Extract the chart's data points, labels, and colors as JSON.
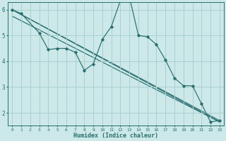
{
  "xlabel": "Humidex (Indice chaleur)",
  "ylabel": "",
  "bg_color": "#cce8e8",
  "grid_color": "#aad0d0",
  "line_color": "#2a6e6e",
  "xlim": [
    -0.5,
    23.5
  ],
  "ylim": [
    1.5,
    6.3
  ],
  "xticks": [
    0,
    1,
    2,
    3,
    4,
    5,
    6,
    7,
    8,
    9,
    10,
    11,
    12,
    13,
    14,
    15,
    16,
    17,
    18,
    19,
    20,
    21,
    22,
    23
  ],
  "yticks": [
    2,
    3,
    4,
    5,
    6
  ],
  "line_jagged": {
    "x": [
      0,
      1,
      3,
      4,
      5,
      6,
      7,
      8,
      9,
      10,
      11,
      12,
      13,
      14,
      15,
      16,
      17,
      18,
      19,
      20,
      21,
      22,
      23
    ],
    "y": [
      6.0,
      5.85,
      5.1,
      4.45,
      4.5,
      4.5,
      4.35,
      3.65,
      3.9,
      4.85,
      5.35,
      6.35,
      6.5,
      5.0,
      4.95,
      4.65,
      4.05,
      3.35,
      3.05,
      3.05,
      2.35,
      1.65,
      1.7
    ]
  },
  "line_straight1": {
    "x": [
      0,
      23
    ],
    "y": [
      6.0,
      1.7
    ]
  },
  "line_straight2": {
    "x": [
      0,
      23
    ],
    "y": [
      6.0,
      1.65
    ]
  },
  "line_straight3": {
    "x": [
      0,
      23
    ],
    "y": [
      5.75,
      1.65
    ]
  }
}
